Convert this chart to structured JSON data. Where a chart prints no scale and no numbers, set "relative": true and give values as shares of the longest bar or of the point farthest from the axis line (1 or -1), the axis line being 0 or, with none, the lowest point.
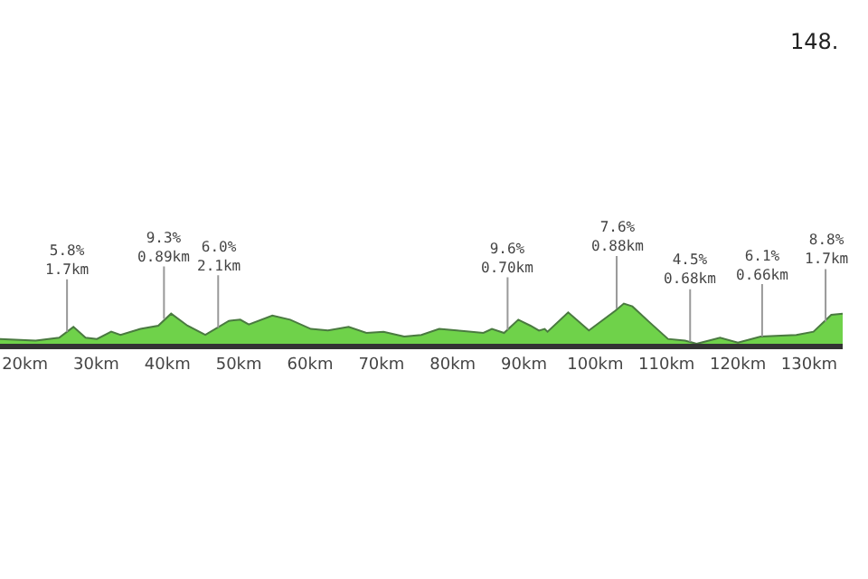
{
  "chart_data": {
    "type": "area",
    "relative": true,
    "x": [
      16.5,
      21.5,
      24.8,
      26.8,
      28.5,
      30.1,
      32.1,
      33.4,
      36.2,
      38.7,
      40.5,
      42.8,
      45.3,
      48.6,
      50.2,
      51.4,
      54.7,
      57.2,
      60.1,
      62.5,
      65.4,
      67.9,
      70.3,
      73.2,
      75.6,
      78.1,
      80.6,
      84.3,
      85.5,
      87.2,
      89.2,
      90.9,
      92.1,
      92.9,
      93.3,
      96.2,
      99.1,
      102.8,
      104.0,
      105.2,
      107.7,
      110.2,
      112.6,
      114.2,
      117.5,
      120.0,
      123.2,
      128.2,
      130.6,
      133.1,
      134.7
    ],
    "series": [
      {
        "color": "#6fd24a",
        "values": [
          0.12,
          0.08,
          0.15,
          0.42,
          0.15,
          0.12,
          0.3,
          0.22,
          0.37,
          0.45,
          0.75,
          0.45,
          0.22,
          0.57,
          0.6,
          0.48,
          0.7,
          0.6,
          0.37,
          0.33,
          0.42,
          0.27,
          0.3,
          0.18,
          0.22,
          0.37,
          0.33,
          0.27,
          0.37,
          0.27,
          0.6,
          0.45,
          0.33,
          0.37,
          0.3,
          0.78,
          0.33,
          0.82,
          1,
          0.93,
          0.52,
          0.12,
          0.08,
          0,
          0.15,
          0.03,
          0.18,
          0.22,
          0.3,
          0.72,
          0.75
        ]
      }
    ],
    "xlim": [
      16.5,
      134.7
    ],
    "xticks": [
      {
        "value": 20,
        "label": "20km"
      },
      {
        "value": 30,
        "label": "30km"
      },
      {
        "value": 40,
        "label": "40km"
      },
      {
        "value": 50,
        "label": "50km"
      },
      {
        "value": 60,
        "label": "60km"
      },
      {
        "value": 70,
        "label": "70km"
      },
      {
        "value": 80,
        "label": "80km"
      },
      {
        "value": 90,
        "label": "90km"
      },
      {
        "value": 100,
        "label": "100km"
      },
      {
        "value": 110,
        "label": "110km"
      },
      {
        "value": 120,
        "label": "120km"
      },
      {
        "value": 130,
        "label": "130km"
      }
    ],
    "annotations": [
      {
        "text": "5.8%\n1.7km",
        "x": 25.9,
        "y": 0.3
      },
      {
        "text": "9.3%\n0.89km",
        "x": 39.5,
        "y": 0.62
      },
      {
        "text": "6.0%\n2.1km",
        "x": 47.1,
        "y": 0.4
      },
      {
        "text": "9.6%\n0.70km",
        "x": 87.7,
        "y": 0.35
      },
      {
        "text": "7.6%\n0.88km",
        "x": 103.0,
        "y": 0.88
      },
      {
        "text": "4.5%\n0.68km",
        "x": 113.3,
        "y": 0.05
      },
      {
        "text": "6.1%\n0.66km",
        "x": 123.4,
        "y": 0.18
      },
      {
        "text": "8.8%\n1.7km",
        "x": 132.3,
        "y": 0.55
      },
      "148."
    ]
  }
}
